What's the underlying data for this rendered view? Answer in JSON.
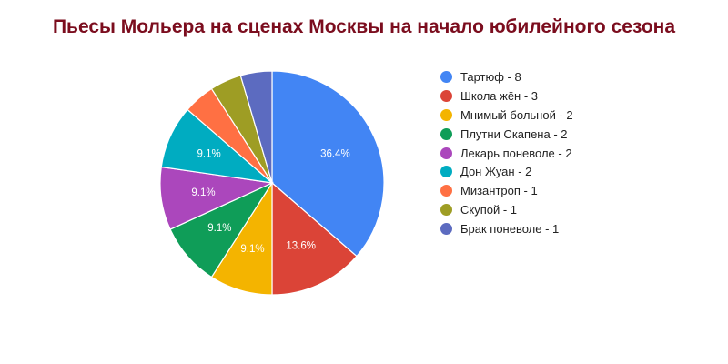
{
  "chart_data": {
    "type": "pie",
    "title": "Пьесы Мольера на сценах Москвы на начало юбилейного сезона",
    "legend_position": "right",
    "slices": [
      {
        "label": "Тартюф",
        "value": 8,
        "percent_label": "36.4%",
        "legend": "Тартюф - 8",
        "color": "#4285f4"
      },
      {
        "label": "Школа жён",
        "value": 3,
        "percent_label": "13.6%",
        "legend": "Школа жён - 3",
        "color": "#db4437"
      },
      {
        "label": "Мнимый больной",
        "value": 2,
        "percent_label": "9.1%",
        "legend": "Мнимый больной - 2",
        "color": "#f4b400"
      },
      {
        "label": "Плутни Скапена",
        "value": 2,
        "percent_label": "9.1%",
        "legend": "Плутни Скапена - 2",
        "color": "#0f9d58"
      },
      {
        "label": "Лекарь поневоле",
        "value": 2,
        "percent_label": "9.1%",
        "legend": "Лекарь поневоле - 2",
        "color": "#ab47bc"
      },
      {
        "label": "Дон Жуан",
        "value": 2,
        "percent_label": "9.1%",
        "legend": "Дон Жуан - 2",
        "color": "#00acc1"
      },
      {
        "label": "Мизантроп",
        "value": 1,
        "percent_label": "",
        "legend": "Мизантроп - 1",
        "color": "#ff7043"
      },
      {
        "label": "Скупой",
        "value": 1,
        "percent_label": "",
        "legend": "Скупой - 1",
        "color": "#9e9d24"
      },
      {
        "label": "Брак поневоле",
        "value": 1,
        "percent_label": "",
        "legend": "Брак поневоле - 1",
        "color": "#5c6bc0"
      }
    ]
  }
}
